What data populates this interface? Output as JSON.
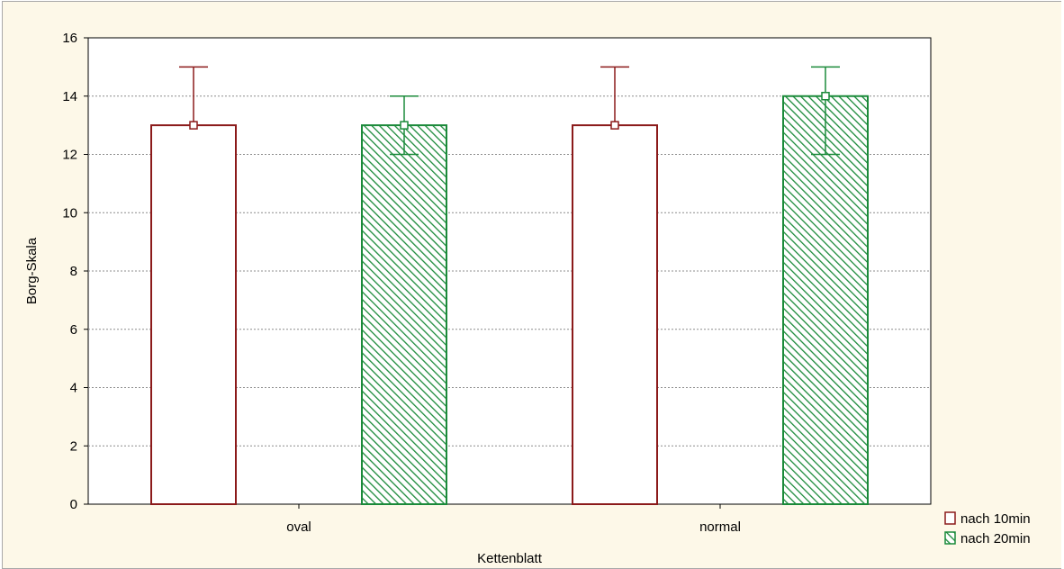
{
  "chart_data": {
    "type": "bar",
    "xlabel": "Kettenblatt",
    "ylabel": "Borg-Skala",
    "categories": [
      "oval",
      "normal"
    ],
    "ylim": [
      0,
      16
    ],
    "yticks": [
      0,
      2,
      4,
      6,
      8,
      10,
      12,
      14,
      16
    ],
    "grid": true,
    "legend_position": "bottom-right",
    "series": [
      {
        "name": "nach 10min",
        "values": [
          13,
          13
        ],
        "error_low": [
          13,
          13
        ],
        "error_high": [
          15,
          15
        ],
        "color": "#8b1a1a",
        "fill": "#ffffff",
        "pattern": "none"
      },
      {
        "name": "nach 20min",
        "values": [
          13,
          14
        ],
        "error_low": [
          12,
          12
        ],
        "error_high": [
          14,
          15
        ],
        "color": "#1b8a3a",
        "fill": "#1b8a3a",
        "pattern": "diagonal-hatch"
      }
    ]
  }
}
